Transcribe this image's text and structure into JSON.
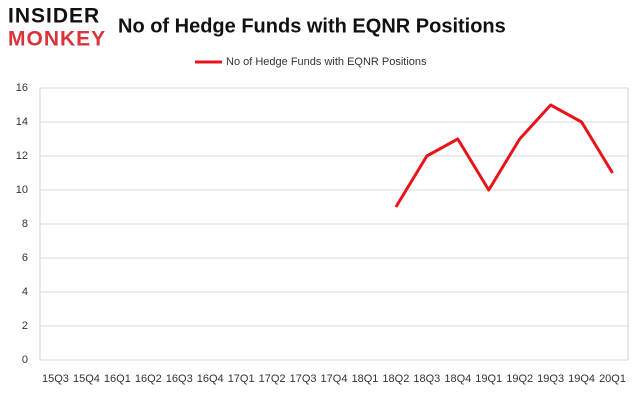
{
  "logo": {
    "line1": "INSIDER",
    "line2": "MONKEY"
  },
  "chart_data": {
    "type": "line",
    "title": "No of Hedge Funds with EQNR Positions",
    "categories": [
      "15Q3",
      "15Q4",
      "16Q1",
      "16Q2",
      "16Q3",
      "16Q4",
      "17Q1",
      "17Q2",
      "17Q3",
      "17Q4",
      "18Q1",
      "18Q2",
      "18Q3",
      "18Q4",
      "19Q1",
      "19Q2",
      "19Q3",
      "19Q4",
      "20Q1"
    ],
    "series": [
      {
        "name": "No of Hedge Funds with EQNR Positions",
        "color": "#e8141c",
        "values": [
          null,
          null,
          null,
          null,
          null,
          null,
          null,
          null,
          null,
          null,
          null,
          9,
          12,
          13,
          10,
          13,
          15,
          14,
          11
        ]
      }
    ],
    "ylim": [
      0,
      16
    ],
    "yticks": [
      0,
      2,
      4,
      6,
      8,
      10,
      12,
      14,
      16
    ],
    "grid": true,
    "legend": "top"
  }
}
